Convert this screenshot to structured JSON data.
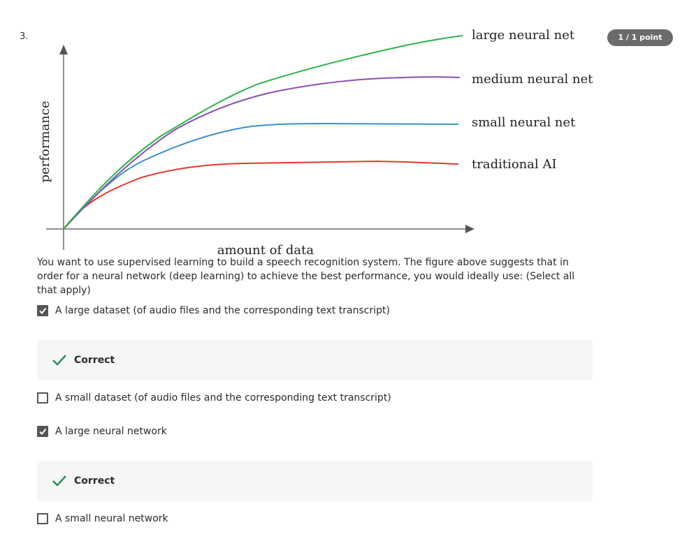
{
  "question": {
    "number": "3.",
    "score": "1 / 1 point",
    "prompt": "You want to use supervised learning to build a speech recognition system. The figure above suggests that in order for a neural network (deep learning) to achieve the best performance, you would ideally use: (Select all that apply)"
  },
  "figure": {
    "xlabel": "amount of data",
    "ylabel": "performance",
    "curves": [
      {
        "name": "large neural net",
        "color": "#2cb34a"
      },
      {
        "name": "medium neural net",
        "color": "#8a4fb5"
      },
      {
        "name": "small neural net",
        "color": "#3a8fd0"
      },
      {
        "name": "traditional AI",
        "color": "#e8352a"
      }
    ]
  },
  "options": [
    {
      "label": "A large dataset (of audio files and the corresponding text transcript)",
      "checked": true,
      "feedback": "Correct"
    },
    {
      "label": "A small dataset (of audio files and the corresponding text transcript)",
      "checked": false,
      "feedback": ""
    },
    {
      "label": "A large neural network",
      "checked": true,
      "feedback": "Correct"
    },
    {
      "label": "A small neural network",
      "checked": false,
      "feedback": ""
    }
  ],
  "colors": {
    "correct_green": "#2e8b57",
    "badge_bg": "#6b6b6b",
    "feedback_bg": "#f5f7f7"
  }
}
